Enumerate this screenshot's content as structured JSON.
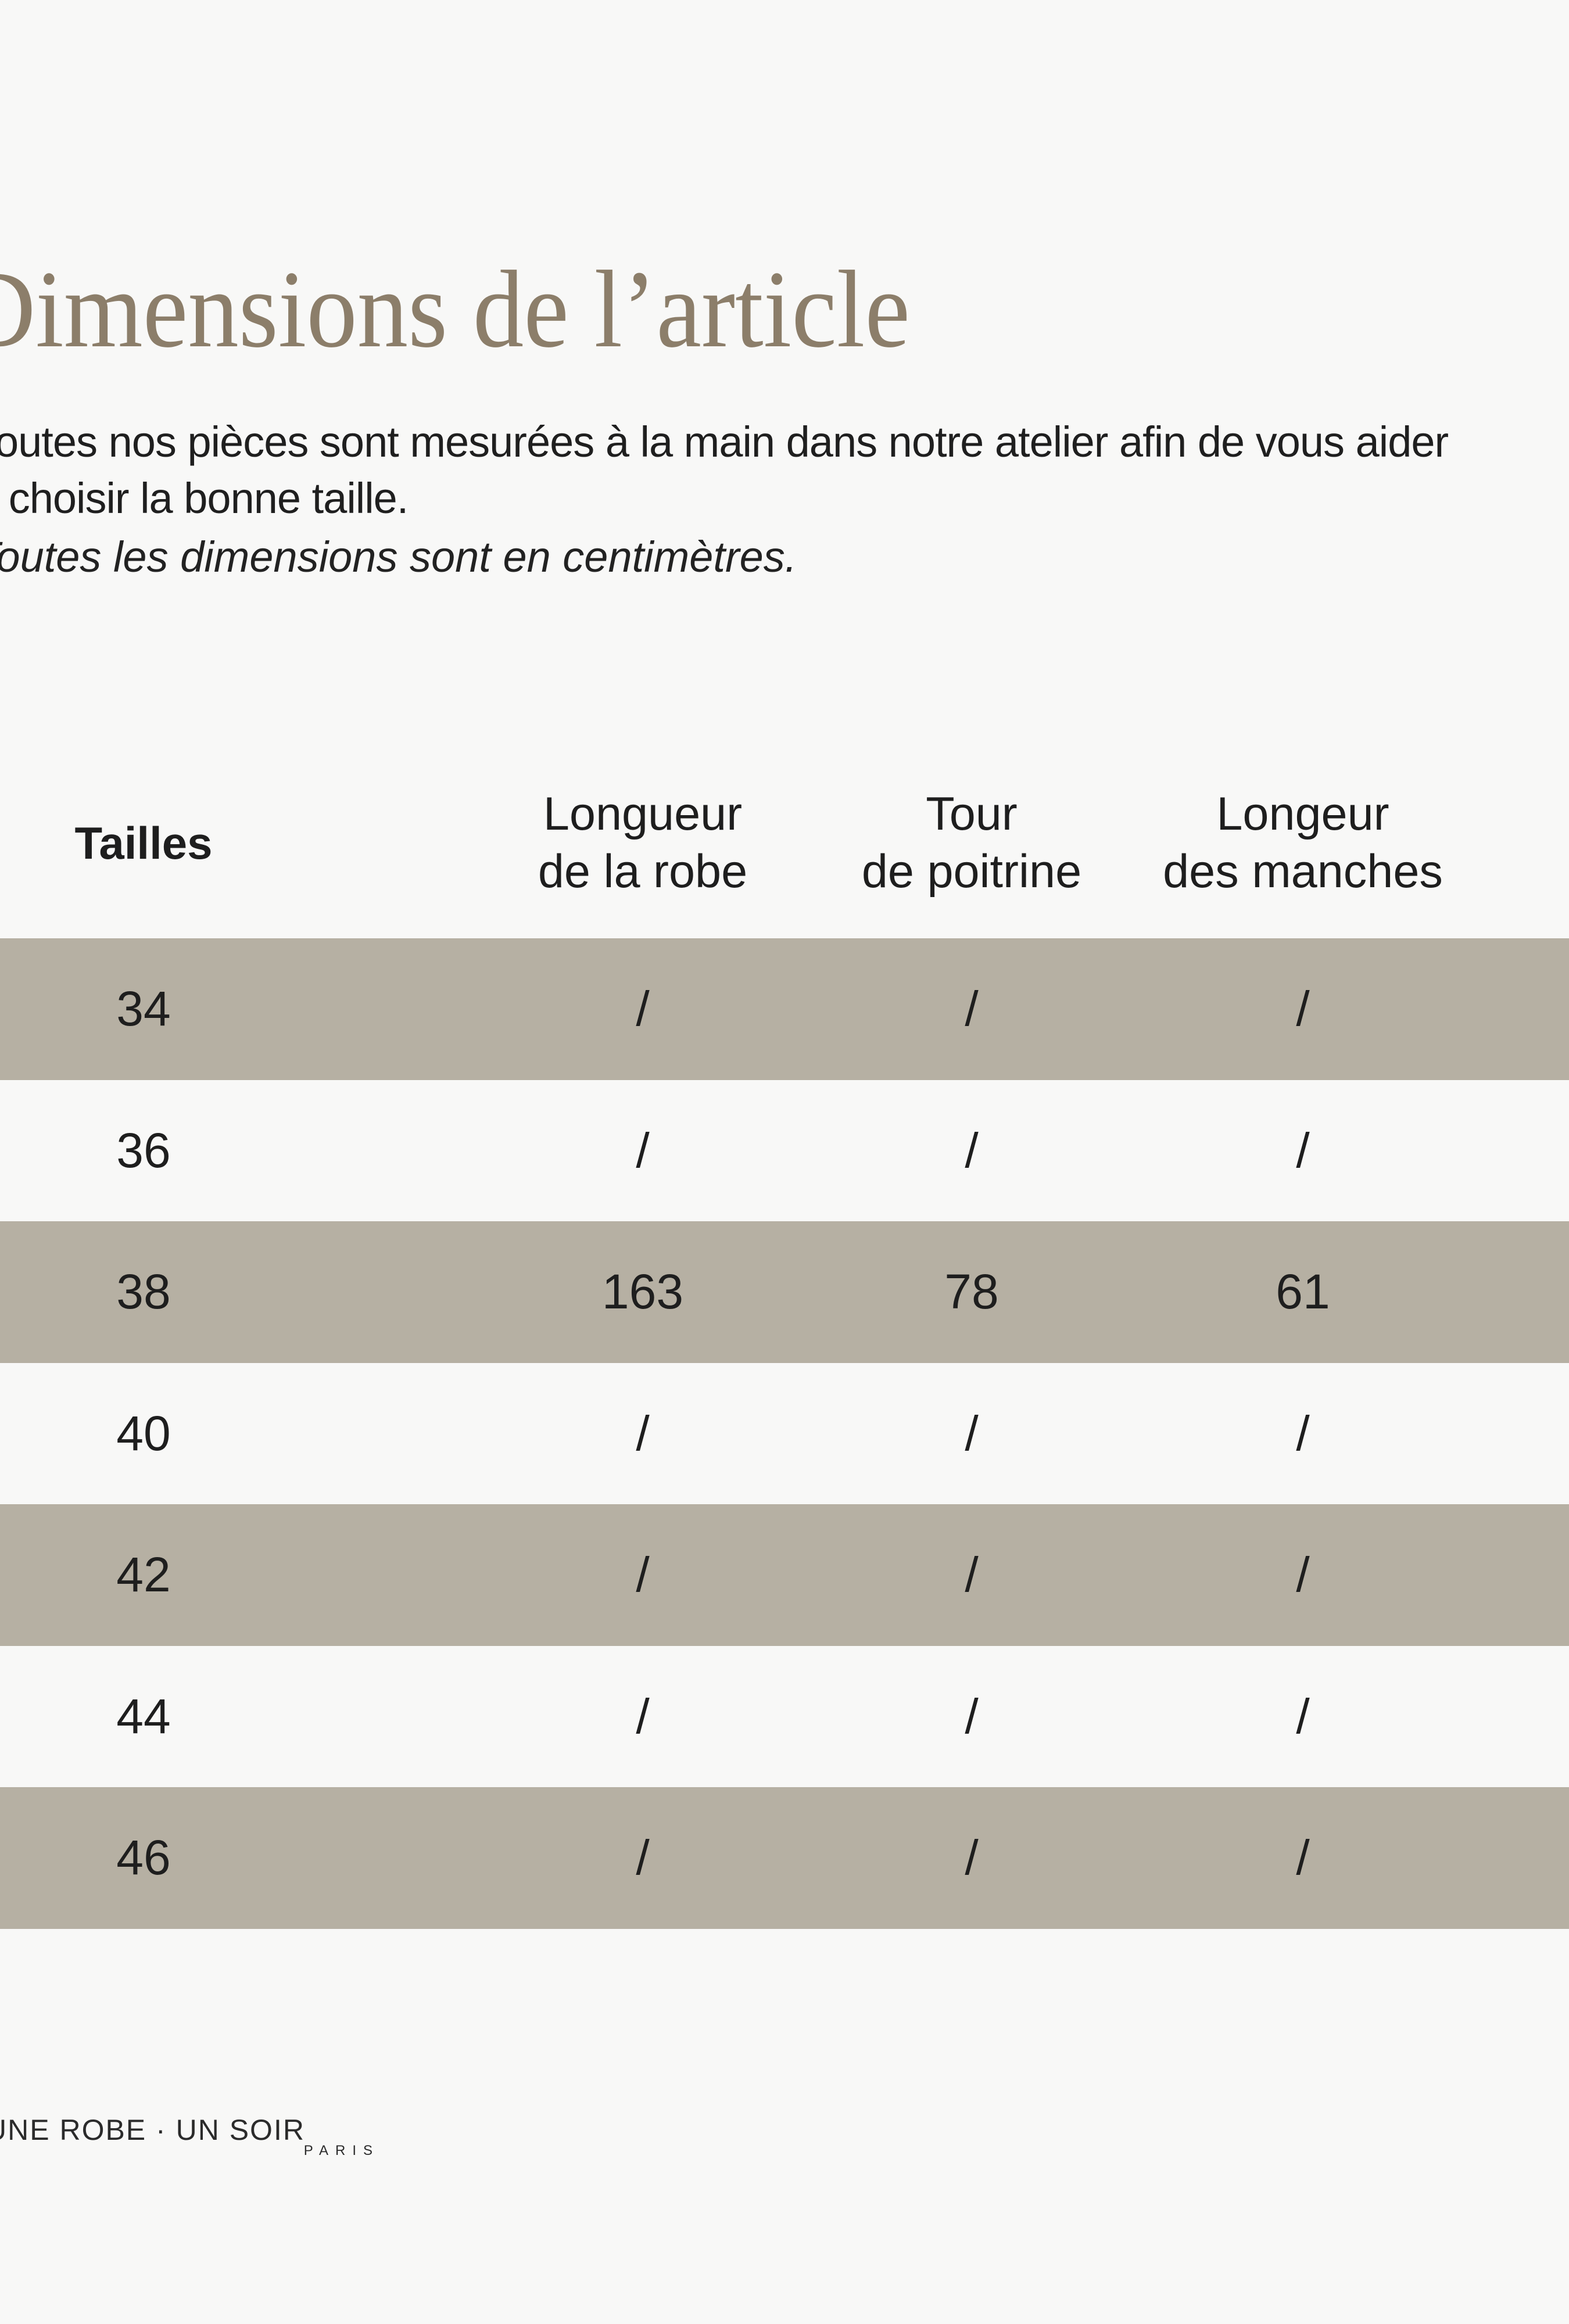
{
  "title": {
    "text": "Dimensions de l’article"
  },
  "intro": {
    "line1": "Toutes nos pièces sont mesurées à la main dans notre atelier afin de vous aider",
    "line2": "à choisir la bonne taille.",
    "note": "Toutes les dimensions sont en centimètres."
  },
  "table": {
    "size_header": "Tailles",
    "columns": [
      {
        "line1": "Longueur",
        "line2": "de la robe"
      },
      {
        "line1": "Tour",
        "line2": "de poitrine"
      },
      {
        "line1": "Longeur",
        "line2": "des manches"
      }
    ],
    "rows": [
      {
        "size": "34",
        "v1": "/",
        "v2": "/",
        "v3": "/"
      },
      {
        "size": "36",
        "v1": "/",
        "v2": "/",
        "v3": "/"
      },
      {
        "size": "38",
        "v1": "163",
        "v2": "78",
        "v3": "61"
      },
      {
        "size": "40",
        "v1": "/",
        "v2": "/",
        "v3": "/"
      },
      {
        "size": "42",
        "v1": "/",
        "v2": "/",
        "v3": "/"
      },
      {
        "size": "44",
        "v1": "/",
        "v2": "/",
        "v3": "/"
      },
      {
        "size": "46",
        "v1": "/",
        "v2": "/",
        "v3": "/"
      }
    ]
  },
  "footer": {
    "logo_main": "UNE ROBE · UN SOIR",
    "logo_sub": "PARIS"
  },
  "colors": {
    "background": "#f8f8f7",
    "shaded_row": "#b6b0a3",
    "title": "#8c7e6a",
    "text": "#1e1e1e"
  }
}
